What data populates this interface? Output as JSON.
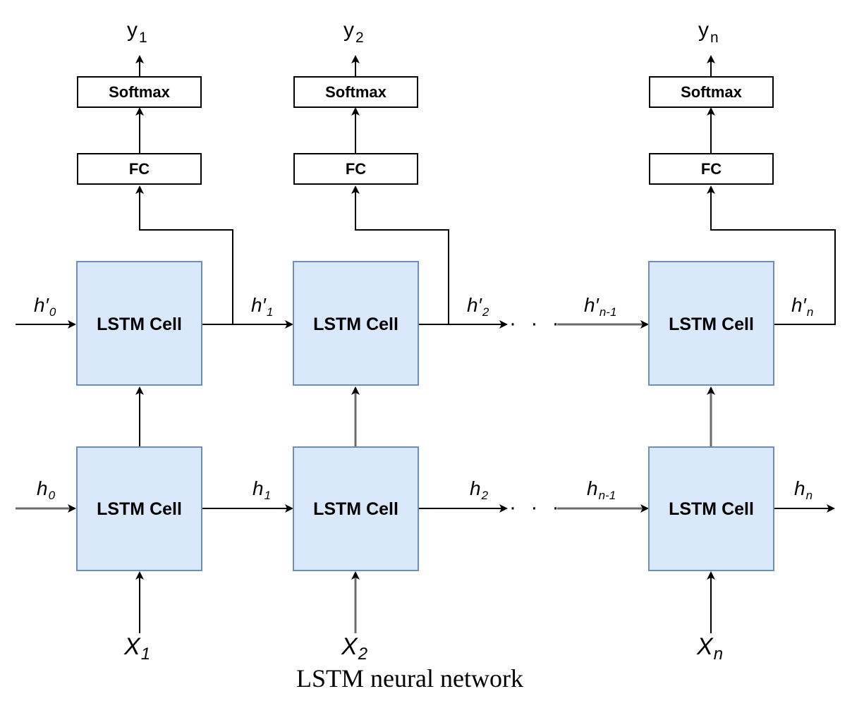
{
  "cells": {
    "label": "LSTM Cell"
  },
  "boxes": {
    "softmax": "Softmax",
    "fc": "FC"
  },
  "outputs": [
    {
      "base": "y",
      "sub": "1"
    },
    {
      "base": "y",
      "sub": "2"
    },
    {
      "base": "y",
      "sub": "n"
    }
  ],
  "inputs": [
    {
      "base": "X",
      "sub": "1"
    },
    {
      "base": "X",
      "sub": "2"
    },
    {
      "base": "X",
      "sub": "n"
    }
  ],
  "top_states": [
    {
      "base": "h′",
      "sub": "0"
    },
    {
      "base": "h′",
      "sub": "1"
    },
    {
      "base": "h′",
      "sub": "2"
    },
    {
      "base": "h′",
      "sub": "n-1"
    },
    {
      "base": "h′",
      "sub": "n"
    }
  ],
  "bottom_states": [
    {
      "base": "h",
      "sub": "0"
    },
    {
      "base": "h",
      "sub": "1"
    },
    {
      "base": "h",
      "sub": "2"
    },
    {
      "base": "h",
      "sub": "n-1"
    },
    {
      "base": "h",
      "sub": "n"
    }
  ],
  "ellipsis": "· · ·",
  "caption": "LSTM neural network"
}
